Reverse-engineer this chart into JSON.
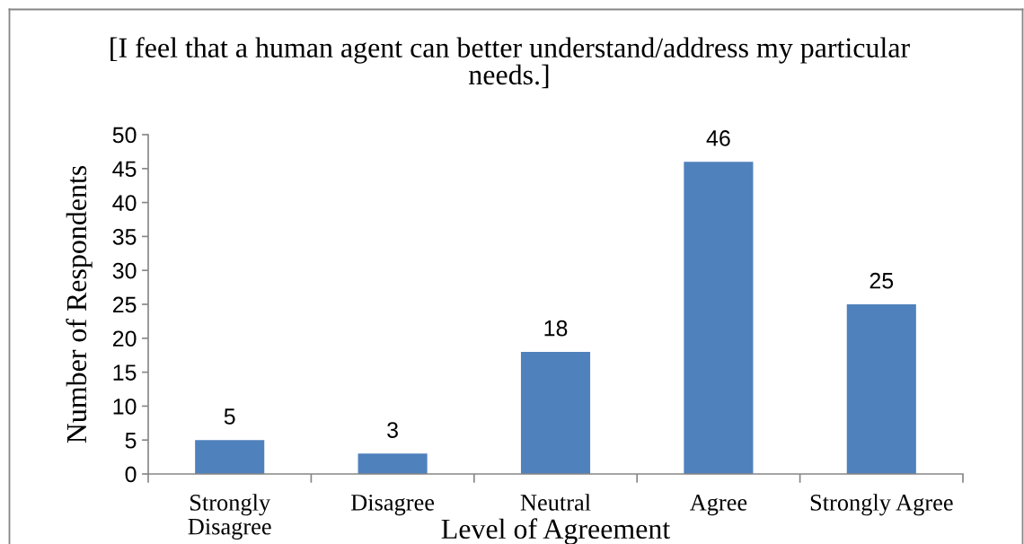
{
  "chart_data": {
    "type": "bar",
    "title": "[I feel that a human agent can better understand/address my particular needs.]",
    "xlabel": "Level of Agreement",
    "ylabel": "Number of Respondents",
    "categories": [
      "Strongly Disagree",
      "Disagree",
      "Neutral",
      "Agree",
      "Strongly Agree"
    ],
    "values": [
      5,
      3,
      18,
      46,
      25
    ],
    "color": "#4f81bd",
    "ylim": [
      0,
      50
    ],
    "yticks": [
      0,
      5,
      10,
      15,
      20,
      25,
      30,
      35,
      40,
      45,
      50
    ],
    "data_labels": true
  }
}
